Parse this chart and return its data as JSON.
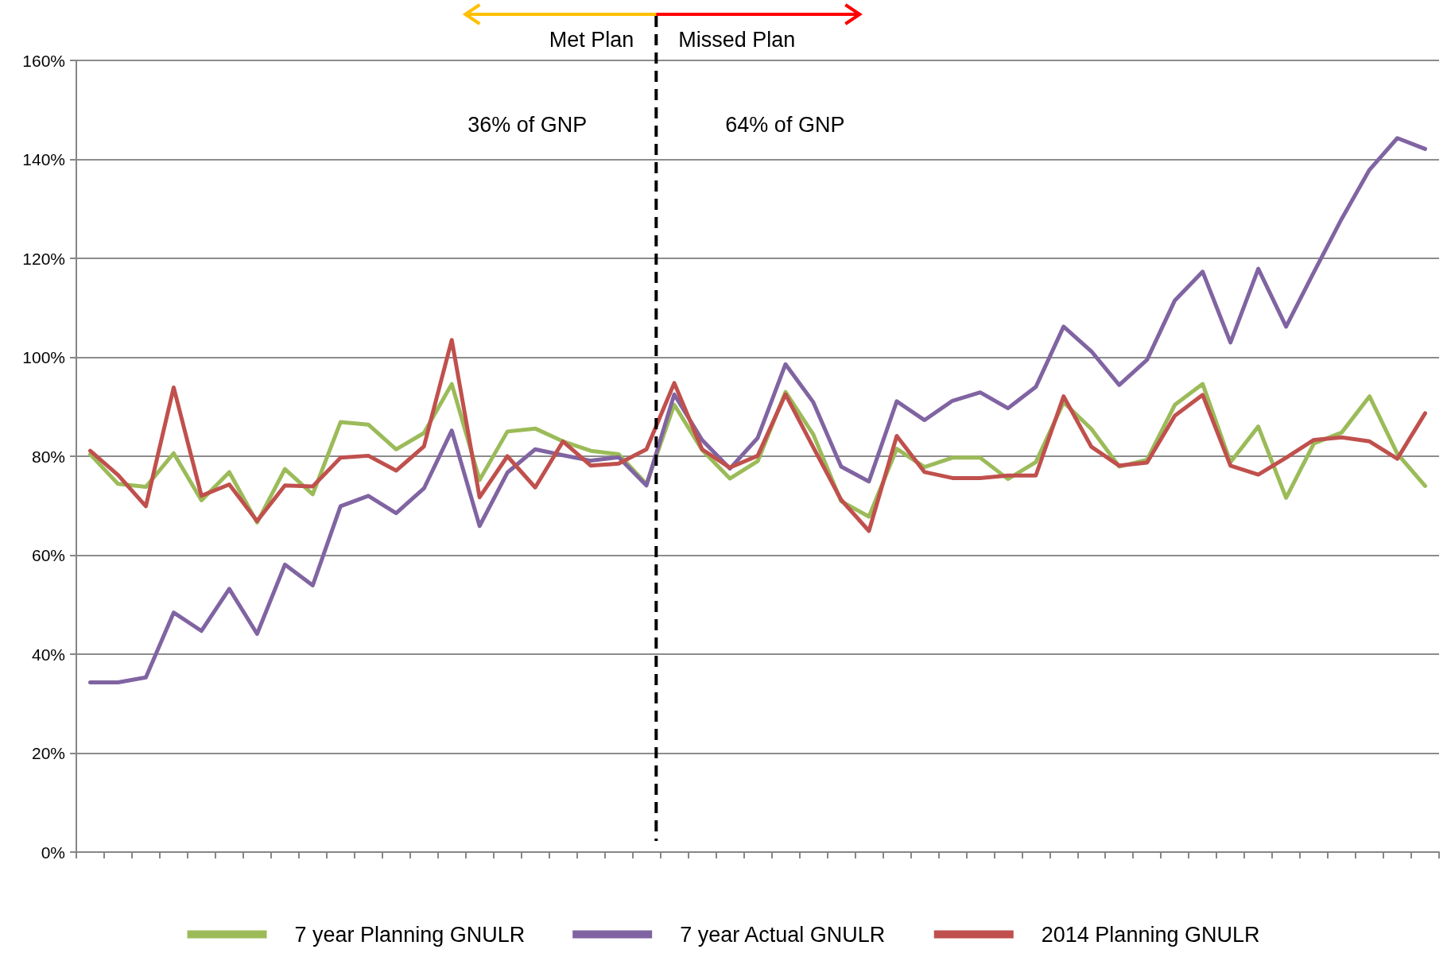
{
  "chart_data": {
    "type": "line",
    "categories": [
      null,
      null,
      null,
      null,
      null,
      null,
      null,
      null,
      null,
      null,
      null,
      null,
      null,
      null,
      null,
      null,
      null,
      null,
      null,
      null,
      null,
      null,
      null,
      null,
      null,
      null,
      null,
      null,
      null,
      null,
      null,
      null,
      null,
      null,
      null,
      null,
      null,
      null,
      null,
      null,
      null,
      null,
      null,
      null,
      null,
      null,
      null,
      null,
      null
    ],
    "ylim": [
      0,
      160
    ],
    "yticks": [
      {
        "value": 0,
        "label": "0%"
      },
      {
        "value": 20,
        "label": "20%"
      },
      {
        "value": 40,
        "label": "40%"
      },
      {
        "value": 60,
        "label": "60%"
      },
      {
        "value": 80,
        "label": "80%"
      },
      {
        "value": 100,
        "label": "100%"
      },
      {
        "value": 120,
        "label": "120%"
      },
      {
        "value": 140,
        "label": "140%"
      },
      {
        "value": 160,
        "label": "160%"
      }
    ],
    "tick_labels": "y",
    "grid": "y",
    "legend": "bottom",
    "marker": "none",
    "series": [
      {
        "name": "7 year Planning GNULR",
        "color": "#9bbb59",
        "values": [
          80.4,
          74.4,
          73.8,
          80.6,
          71.1,
          76.8,
          66.6,
          77.4,
          72.3,
          86.9,
          86.4,
          81.4,
          84.7,
          94.6,
          75.2,
          85.0,
          85.6,
          83.0,
          81.1,
          80.4,
          74.4,
          90.4,
          81.3,
          75.5,
          79.0,
          93.0,
          84.4,
          70.9,
          67.8,
          81.5,
          77.8,
          79.7,
          79.7,
          75.4,
          78.8,
          90.9,
          85.5,
          77.9,
          79.3,
          90.4,
          94.6,
          78.8,
          86.0,
          71.6,
          82.6,
          84.8,
          92.1,
          80.5,
          74.0
        ]
      },
      {
        "name": "7 year Actual GNULR",
        "color": "#8064a2",
        "values": [
          34.3,
          34.3,
          35.3,
          48.4,
          44.7,
          53.2,
          44.1,
          58.1,
          53.9,
          69.9,
          72.0,
          68.5,
          73.5,
          85.2,
          65.9,
          76.7,
          81.4,
          80.2,
          79.1,
          79.8,
          74.1,
          92.5,
          83.3,
          77.5,
          83.7,
          98.6,
          90.9,
          77.9,
          74.9,
          91.1,
          87.3,
          91.2,
          92.9,
          89.7,
          94.0,
          106.2,
          101.2,
          94.4,
          99.5,
          111.5,
          117.3,
          103.0,
          117.9,
          106.2,
          117.2,
          128.0,
          137.9,
          144.3,
          142.1
        ]
      },
      {
        "name": "2014 Planning GNULR",
        "color": "#c0504d",
        "values": [
          81.1,
          76.2,
          69.9,
          93.9,
          72.0,
          74.3,
          66.9,
          74.1,
          73.9,
          79.7,
          80.1,
          77.1,
          82.0,
          103.5,
          71.7,
          80.0,
          73.7,
          83.0,
          78.1,
          78.5,
          81.4,
          94.8,
          81.4,
          77.7,
          80.1,
          92.5,
          81.8,
          71.2,
          64.9,
          84.1,
          76.8,
          75.6,
          75.6,
          76.1,
          76.1,
          92.1,
          81.9,
          78.1,
          78.7,
          88.2,
          92.4,
          78.1,
          76.3,
          79.7,
          83.3,
          83.8,
          83.0,
          79.5,
          88.7
        ]
      }
    ],
    "annotations": [
      "Met Plan",
      "Missed Plan",
      "36% of GNP",
      "64% of GNP"
    ]
  }
}
